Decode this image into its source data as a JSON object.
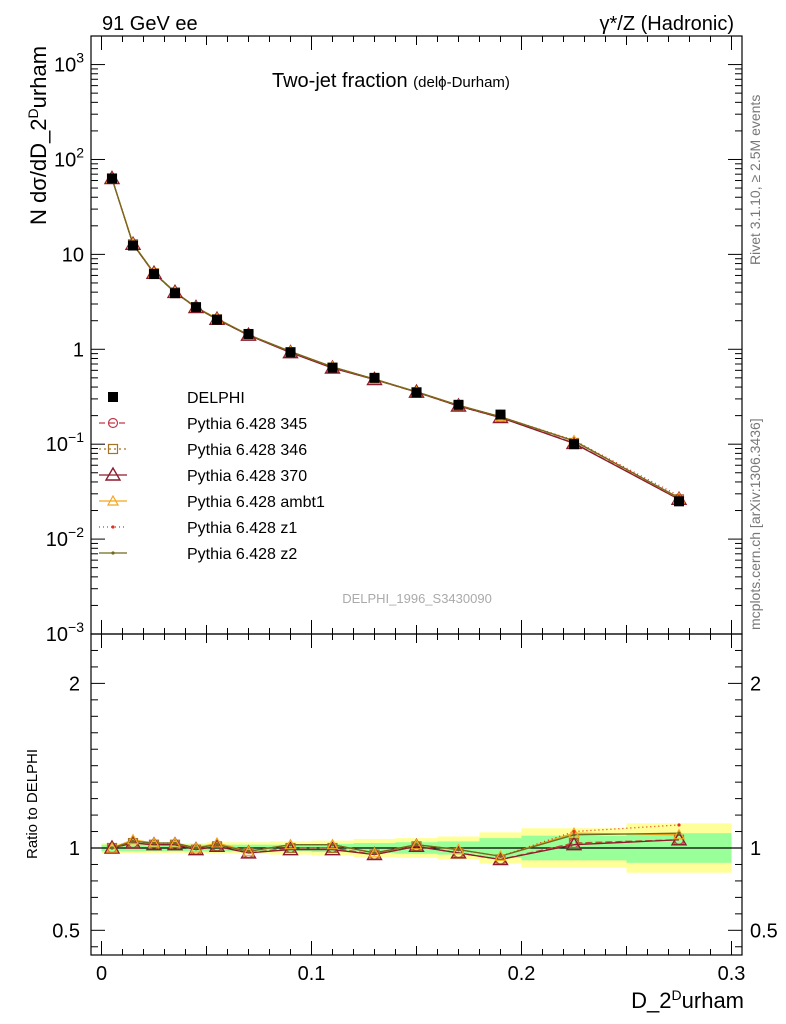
{
  "header": {
    "left": "91 GeV ee",
    "right": "γ*/Z (Hadronic)"
  },
  "side_labels": {
    "top": "Rivet 3.1.10, ≥ 2.5M events",
    "bottom": "mcplots.cern.ch [arXiv:1306.3436]"
  },
  "chart_data": {
    "type": "line",
    "title": "Two-jet fraction",
    "title_suffix": "(delϕ-Durham)",
    "watermark": "DELPHI_1996_S3430090",
    "xlabel": "D_2",
    "xlabel_sup": "D",
    "xlabel_tail": "urham",
    "ylabel": "N dσ/dD_2",
    "ylabel_sup": "D",
    "ylabel_tail": "urham",
    "ratio_ylabel": "Ratio to DELPHI",
    "xlim": [
      -0.005,
      0.305
    ],
    "ylim": [
      0.001,
      2000
    ],
    "yscale": "log",
    "ratio_ylim": [
      0.35,
      2.3
    ],
    "x_ticks": [
      {
        "v": 0,
        "label": "0"
      },
      {
        "v": 0.1,
        "label": "0.1"
      },
      {
        "v": 0.2,
        "label": "0.2"
      },
      {
        "v": 0.3,
        "label": "0.3"
      }
    ],
    "y_ticks": [
      {
        "v": 1000,
        "base": "10",
        "exp": "3"
      },
      {
        "v": 100,
        "base": "10",
        "exp": "2"
      },
      {
        "v": 10,
        "base": "10",
        "exp": ""
      },
      {
        "v": 1,
        "base": "1",
        "exp": ""
      },
      {
        "v": 0.1,
        "base": "10",
        "exp": "−1"
      },
      {
        "v": 0.01,
        "base": "10",
        "exp": "−2"
      },
      {
        "v": 0.001,
        "base": "10",
        "exp": "−3"
      }
    ],
    "ratio_ticks": [
      {
        "v": 2,
        "label": "2"
      },
      {
        "v": 1,
        "label": "1"
      },
      {
        "v": 0.5,
        "label": "0.5"
      }
    ],
    "x": [
      0.005,
      0.015,
      0.025,
      0.035,
      0.045,
      0.055,
      0.07,
      0.09,
      0.11,
      0.13,
      0.15,
      0.17,
      0.19,
      0.225,
      0.275
    ],
    "bin_edges": [
      0.0,
      0.01,
      0.02,
      0.03,
      0.04,
      0.05,
      0.06,
      0.08,
      0.1,
      0.12,
      0.14,
      0.16,
      0.18,
      0.2,
      0.25,
      0.3
    ],
    "band_green_half": [
      0.02,
      0.02,
      0.02,
      0.02,
      0.02,
      0.02,
      0.02,
      0.02,
      0.025,
      0.03,
      0.035,
      0.04,
      0.06,
      0.075,
      0.09
    ],
    "band_yellow_half": [
      0.03,
      0.03,
      0.03,
      0.03,
      0.03,
      0.035,
      0.035,
      0.04,
      0.045,
      0.055,
      0.06,
      0.07,
      0.095,
      0.12,
      0.15
    ],
    "data": {
      "name": "DELPHI",
      "color": "#000000",
      "values": [
        63,
        12.4,
        6.2,
        3.9,
        2.78,
        2.05,
        1.45,
        0.93,
        0.64,
        0.5,
        0.35,
        0.26,
        0.205,
        0.1,
        0.025
      ]
    },
    "series": [
      {
        "name": "Pythia 6.428 345",
        "color": "#c0394b",
        "dash": "6,4",
        "marker": "circle",
        "ratio": [
          1.0,
          1.03,
          1.02,
          1.02,
          0.99,
          1.01,
          0.97,
          1.0,
          1.0,
          0.96,
          1.01,
          0.97,
          0.93,
          1.03,
          1.05
        ]
      },
      {
        "name": "Pythia 6.428 346",
        "color": "#a37326",
        "dash": "2,3",
        "marker": "square",
        "ratio": [
          1.0,
          1.03,
          1.02,
          1.02,
          0.99,
          1.01,
          0.97,
          1.0,
          1.0,
          0.96,
          1.01,
          0.97,
          0.93,
          1.03,
          1.05
        ]
      },
      {
        "name": "Pythia 6.428 370",
        "color": "#8c1c2c",
        "dash": "",
        "marker": "triangle-big",
        "ratio": [
          1.0,
          1.03,
          1.02,
          1.02,
          0.99,
          1.01,
          0.97,
          0.99,
          0.99,
          0.96,
          1.01,
          0.97,
          0.93,
          1.02,
          1.05
        ]
      },
      {
        "name": "Pythia 6.428 ambt1",
        "color": "#f2a81d",
        "dash": "",
        "marker": "triangle",
        "ratio": [
          1.0,
          1.05,
          1.03,
          1.03,
          1.0,
          1.03,
          0.98,
          1.02,
          1.02,
          0.97,
          1.02,
          0.99,
          0.95,
          1.09,
          1.08
        ]
      },
      {
        "name": "Pythia 6.428 z1",
        "color": "#e03020",
        "dash": "1,3",
        "marker": "dot",
        "ratio": [
          1.0,
          1.04,
          1.03,
          1.03,
          1.0,
          1.02,
          0.98,
          1.02,
          1.02,
          0.97,
          1.02,
          0.99,
          0.95,
          1.1,
          1.14
        ]
      },
      {
        "name": "Pythia 6.428 z2",
        "color": "#6f6a1f",
        "dash": "",
        "marker": "dot",
        "ratio": [
          1.0,
          1.04,
          1.03,
          1.03,
          1.0,
          1.02,
          0.98,
          1.02,
          1.02,
          0.97,
          1.02,
          0.99,
          0.95,
          1.08,
          1.09
        ]
      }
    ],
    "legend_position": "left-middle"
  }
}
